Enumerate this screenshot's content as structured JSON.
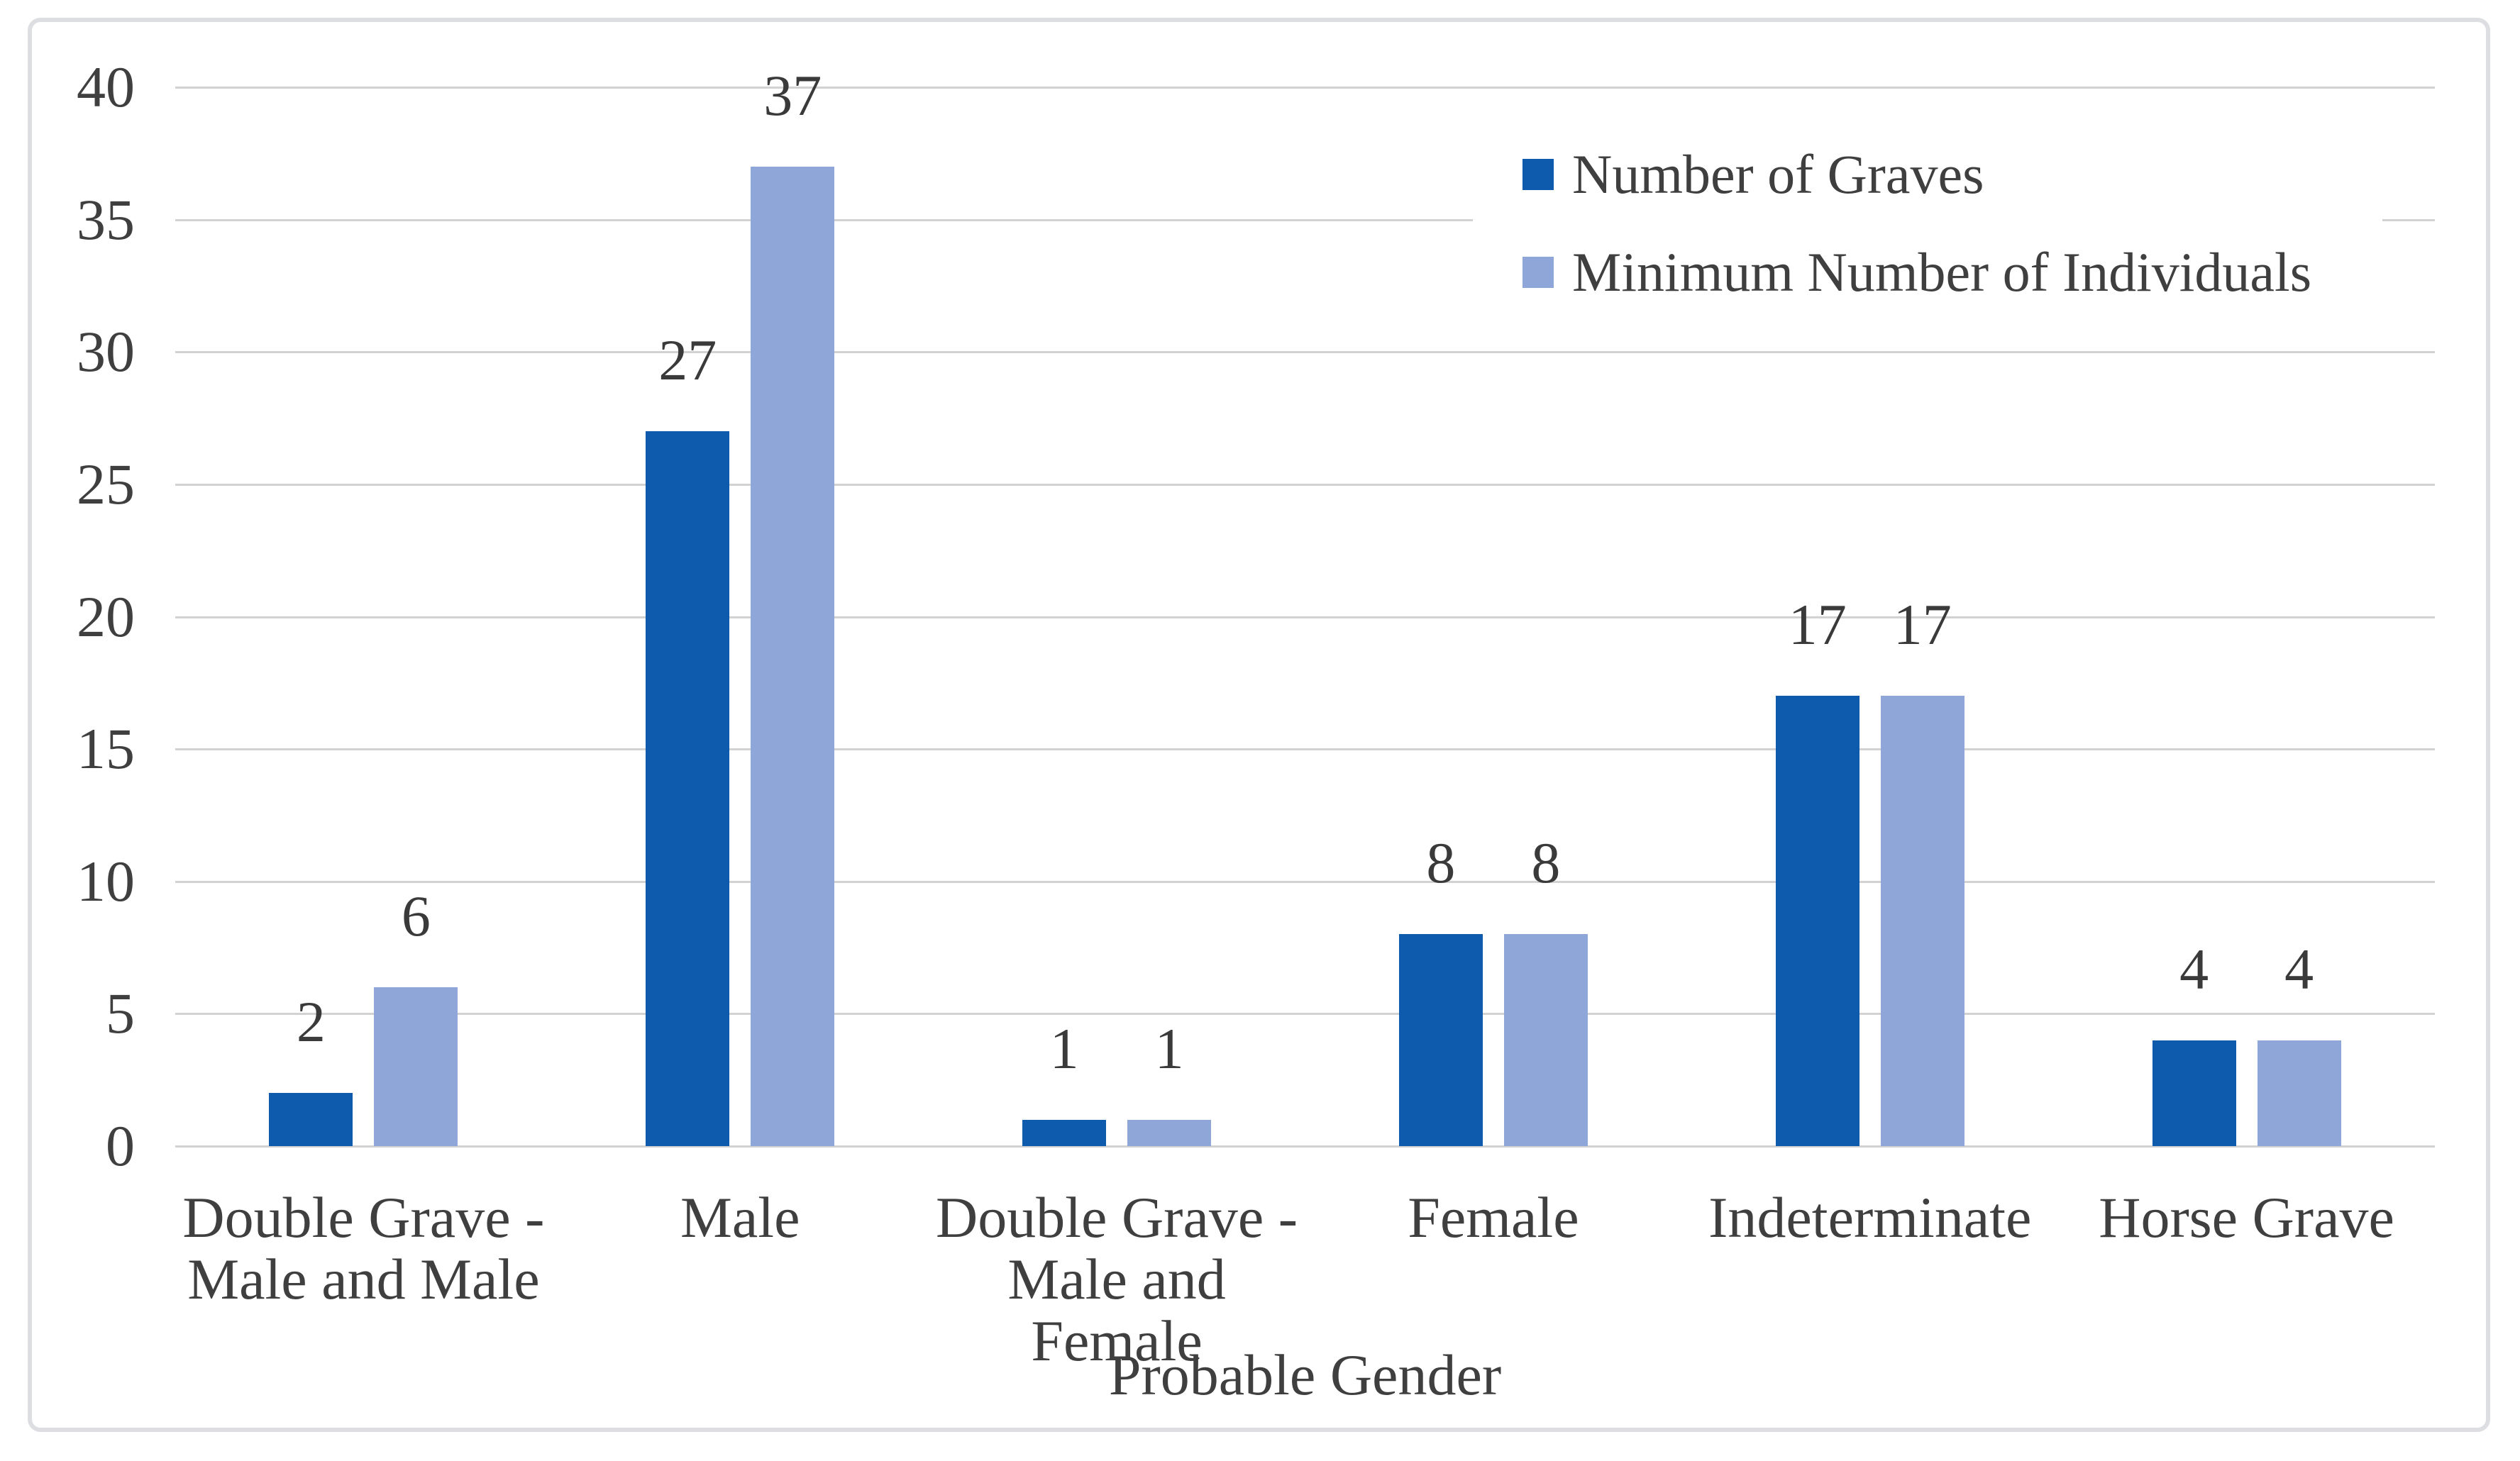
{
  "chart_data": {
    "type": "bar",
    "title": "",
    "xlabel": "Probable Gender",
    "ylabel": "",
    "categories": [
      "Double Grave -\nMale and Male",
      "Male",
      "Double Grave -\nMale and Female",
      "Female",
      "Indeterminate",
      "Horse Grave"
    ],
    "series": [
      {
        "name": "Number of Graves",
        "color": "#0E5AAC",
        "values": [
          2,
          27,
          1,
          8,
          17,
          4
        ]
      },
      {
        "name": "Minimum Number of Individuals",
        "color": "#8EA6D8",
        "values": [
          6,
          37,
          1,
          8,
          17,
          4
        ]
      }
    ],
    "ylim": [
      0,
      40
    ],
    "yticks": [
      0,
      5,
      10,
      15,
      20,
      25,
      30,
      35,
      40
    ],
    "grid": true,
    "data_labels": true,
    "legend_position": "top-right"
  },
  "style": {
    "grid_color": "#D2D2D2",
    "text_color": "#3F3F3F",
    "border_color": "#DCDEE1",
    "background": "#FFFFFF"
  }
}
